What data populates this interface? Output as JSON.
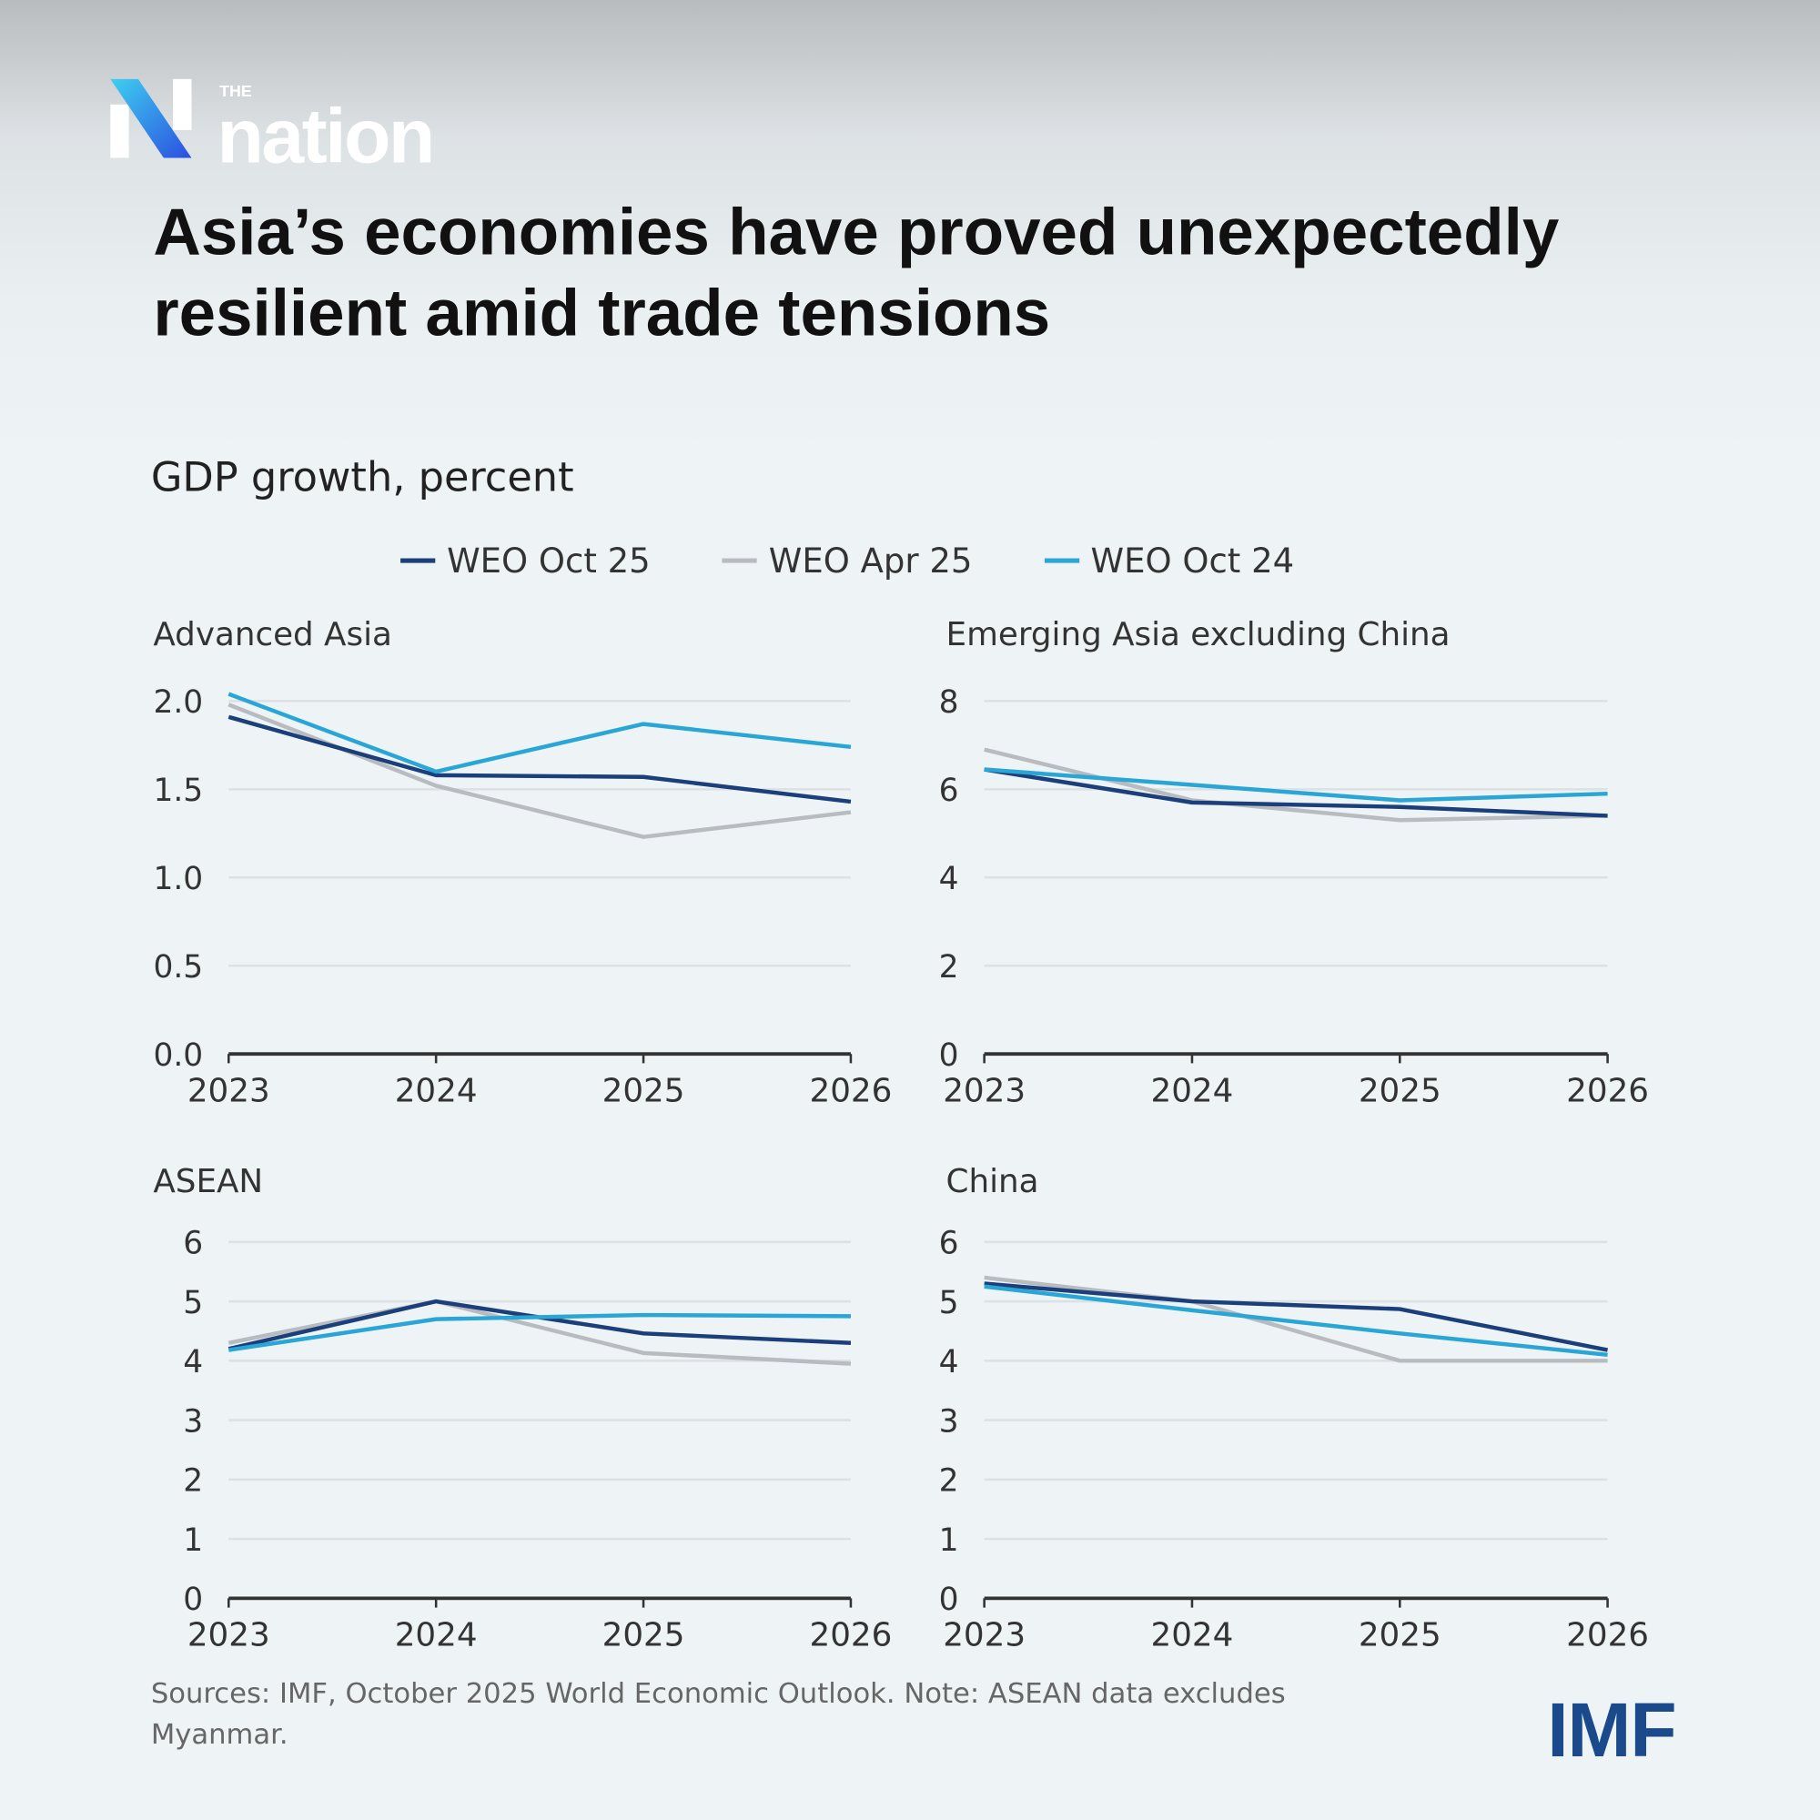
{
  "brand": {
    "logo_small": "THE",
    "logo_word": "nation",
    "source_logo": "IMF"
  },
  "header": {
    "title": "Asia’s economies have proved unexpectedly resilient amid trade tensions",
    "subtitle": "GDP growth, percent"
  },
  "legend": [
    {
      "label": "WEO Oct 25",
      "color": "#1b3f7a"
    },
    {
      "label": "WEO Apr 25",
      "color": "#b8bcc0"
    },
    {
      "label": "WEO Oct 24",
      "color": "#2aa6d6"
    }
  ],
  "chart_data": [
    {
      "type": "line",
      "title": "Advanced Asia",
      "x": [
        "2023",
        "2024",
        "2025",
        "2026"
      ],
      "ylim": [
        0,
        2.0
      ],
      "yticks": [
        "0.0",
        "0.5",
        "1.0",
        "1.5",
        "2.0"
      ],
      "grid": true,
      "series": [
        {
          "name": "WEO Oct 25",
          "values": [
            1.91,
            1.58,
            1.57,
            1.43
          ]
        },
        {
          "name": "WEO Apr 25",
          "values": [
            1.98,
            1.52,
            1.23,
            1.37
          ]
        },
        {
          "name": "WEO Oct 24",
          "values": [
            2.04,
            1.6,
            1.87,
            1.74
          ]
        }
      ]
    },
    {
      "type": "line",
      "title": "Emerging Asia excluding China",
      "x": [
        "2023",
        "2024",
        "2025",
        "2026"
      ],
      "ylim": [
        0,
        8
      ],
      "yticks": [
        "0",
        "2",
        "4",
        "6",
        "8"
      ],
      "grid": true,
      "series": [
        {
          "name": "WEO Oct 25",
          "values": [
            6.45,
            5.7,
            5.6,
            5.4
          ]
        },
        {
          "name": "WEO Apr 25",
          "values": [
            6.9,
            5.75,
            5.3,
            5.4
          ]
        },
        {
          "name": "WEO Oct 24",
          "values": [
            6.45,
            6.1,
            5.75,
            5.9
          ]
        }
      ]
    },
    {
      "type": "line",
      "title": "ASEAN",
      "x": [
        "2023",
        "2024",
        "2025",
        "2026"
      ],
      "ylim": [
        0,
        6
      ],
      "yticks": [
        "0",
        "1",
        "2",
        "3",
        "4",
        "5",
        "6"
      ],
      "grid": true,
      "series": [
        {
          "name": "WEO Oct 25",
          "values": [
            4.2,
            5.0,
            4.46,
            4.3
          ]
        },
        {
          "name": "WEO Apr 25",
          "values": [
            4.3,
            5.0,
            4.13,
            3.95
          ]
        },
        {
          "name": "WEO Oct 24",
          "values": [
            4.18,
            4.7,
            4.77,
            4.75
          ]
        }
      ]
    },
    {
      "type": "line",
      "title": "China",
      "x": [
        "2023",
        "2024",
        "2025",
        "2026"
      ],
      "ylim": [
        0,
        6
      ],
      "yticks": [
        "0",
        "1",
        "2",
        "3",
        "4",
        "5",
        "6"
      ],
      "grid": true,
      "series": [
        {
          "name": "WEO Oct 25",
          "values": [
            5.3,
            5.0,
            4.87,
            4.18
          ]
        },
        {
          "name": "WEO Apr 25",
          "values": [
            5.4,
            5.0,
            4.0,
            4.0
          ]
        },
        {
          "name": "WEO Oct 24",
          "values": [
            5.25,
            4.85,
            4.46,
            4.1
          ]
        }
      ]
    }
  ],
  "footer": {
    "source": "Sources: IMF, October 2025 World Economic Outlook. Note: ASEAN data excludes Myanmar."
  }
}
